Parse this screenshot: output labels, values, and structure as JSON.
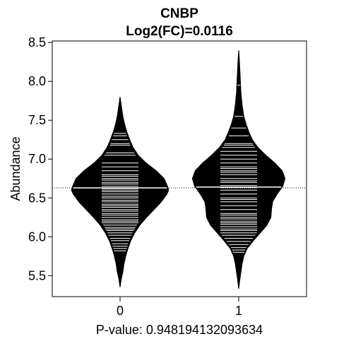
{
  "chart_data": {
    "type": "beanplot",
    "title": "CNBP",
    "subtitle": "Log2(FC)=0.0116",
    "xlabel": "P-value: 0.948194132093634",
    "ylabel": "Abundance",
    "ylim": [
      5.23,
      8.52
    ],
    "yticks": [
      5.5,
      6.0,
      6.5,
      7.0,
      7.5,
      8.0,
      8.5
    ],
    "yticklabels": [
      "5.5",
      "6.0",
      "6.5",
      "7.0",
      "7.5",
      "8.0",
      "8.5"
    ],
    "categories": [
      "0",
      "1"
    ],
    "overall_mean": 6.63,
    "groups": [
      {
        "label": "0",
        "min": 5.35,
        "max": 7.8,
        "mean": 6.63,
        "density": [
          [
            5.35,
            0.0
          ],
          [
            5.45,
            0.02
          ],
          [
            5.55,
            0.05
          ],
          [
            5.65,
            0.07
          ],
          [
            5.75,
            0.1
          ],
          [
            5.85,
            0.14
          ],
          [
            5.95,
            0.19
          ],
          [
            6.05,
            0.26
          ],
          [
            6.15,
            0.35
          ],
          [
            6.25,
            0.47
          ],
          [
            6.35,
            0.6
          ],
          [
            6.45,
            0.73
          ],
          [
            6.55,
            0.83
          ],
          [
            6.6,
            0.86
          ],
          [
            6.65,
            0.84
          ],
          [
            6.75,
            0.78
          ],
          [
            6.85,
            0.64
          ],
          [
            6.95,
            0.46
          ],
          [
            7.05,
            0.32
          ],
          [
            7.15,
            0.23
          ],
          [
            7.25,
            0.17
          ],
          [
            7.35,
            0.12
          ],
          [
            7.45,
            0.08
          ],
          [
            7.55,
            0.05
          ],
          [
            7.65,
            0.03
          ],
          [
            7.8,
            0.0
          ]
        ],
        "observations": [
          5.82,
          5.85,
          5.88,
          5.91,
          5.95,
          5.98,
          6.02,
          6.05,
          6.08,
          6.1,
          6.12,
          6.15,
          6.18,
          6.2,
          6.22,
          6.25,
          6.28,
          6.3,
          6.33,
          6.35,
          6.38,
          6.4,
          6.42,
          6.45,
          6.47,
          6.5,
          6.52,
          6.55,
          6.58,
          6.6,
          6.62,
          6.65,
          6.68,
          6.7,
          6.73,
          6.75,
          6.78,
          6.8,
          6.85,
          6.9,
          6.95,
          7.05,
          7.08,
          7.18,
          7.2,
          7.25,
          7.3,
          7.33
        ]
      },
      {
        "label": "1",
        "min": 5.33,
        "max": 8.4,
        "mean": 6.64,
        "density": [
          [
            5.33,
            0.0
          ],
          [
            5.45,
            0.02
          ],
          [
            5.55,
            0.04
          ],
          [
            5.65,
            0.06
          ],
          [
            5.75,
            0.09
          ],
          [
            5.85,
            0.15
          ],
          [
            5.95,
            0.26
          ],
          [
            6.05,
            0.38
          ],
          [
            6.15,
            0.5
          ],
          [
            6.25,
            0.57
          ],
          [
            6.35,
            0.58
          ],
          [
            6.45,
            0.6
          ],
          [
            6.55,
            0.68
          ],
          [
            6.65,
            0.78
          ],
          [
            6.75,
            0.82
          ],
          [
            6.85,
            0.77
          ],
          [
            6.95,
            0.64
          ],
          [
            7.05,
            0.48
          ],
          [
            7.15,
            0.34
          ],
          [
            7.25,
            0.24
          ],
          [
            7.35,
            0.18
          ],
          [
            7.45,
            0.13
          ],
          [
            7.55,
            0.09
          ],
          [
            7.7,
            0.06
          ],
          [
            7.85,
            0.04
          ],
          [
            8.0,
            0.03
          ],
          [
            8.15,
            0.02
          ],
          [
            8.3,
            0.01
          ],
          [
            8.4,
            0.0
          ]
        ],
        "observations": [
          5.8,
          5.83,
          5.86,
          5.9,
          5.94,
          5.98,
          6.02,
          6.05,
          6.08,
          6.1,
          6.13,
          6.16,
          6.18,
          6.2,
          6.23,
          6.25,
          6.28,
          6.3,
          6.35,
          6.4,
          6.45,
          6.48,
          6.5,
          6.55,
          6.6,
          6.63,
          6.66,
          6.7,
          6.72,
          6.75,
          6.8,
          6.83,
          6.85,
          6.88,
          6.9,
          6.95,
          7.0,
          7.05,
          7.1,
          7.15,
          7.18,
          7.2,
          7.3,
          7.4,
          7.55,
          7.95
        ]
      }
    ]
  }
}
